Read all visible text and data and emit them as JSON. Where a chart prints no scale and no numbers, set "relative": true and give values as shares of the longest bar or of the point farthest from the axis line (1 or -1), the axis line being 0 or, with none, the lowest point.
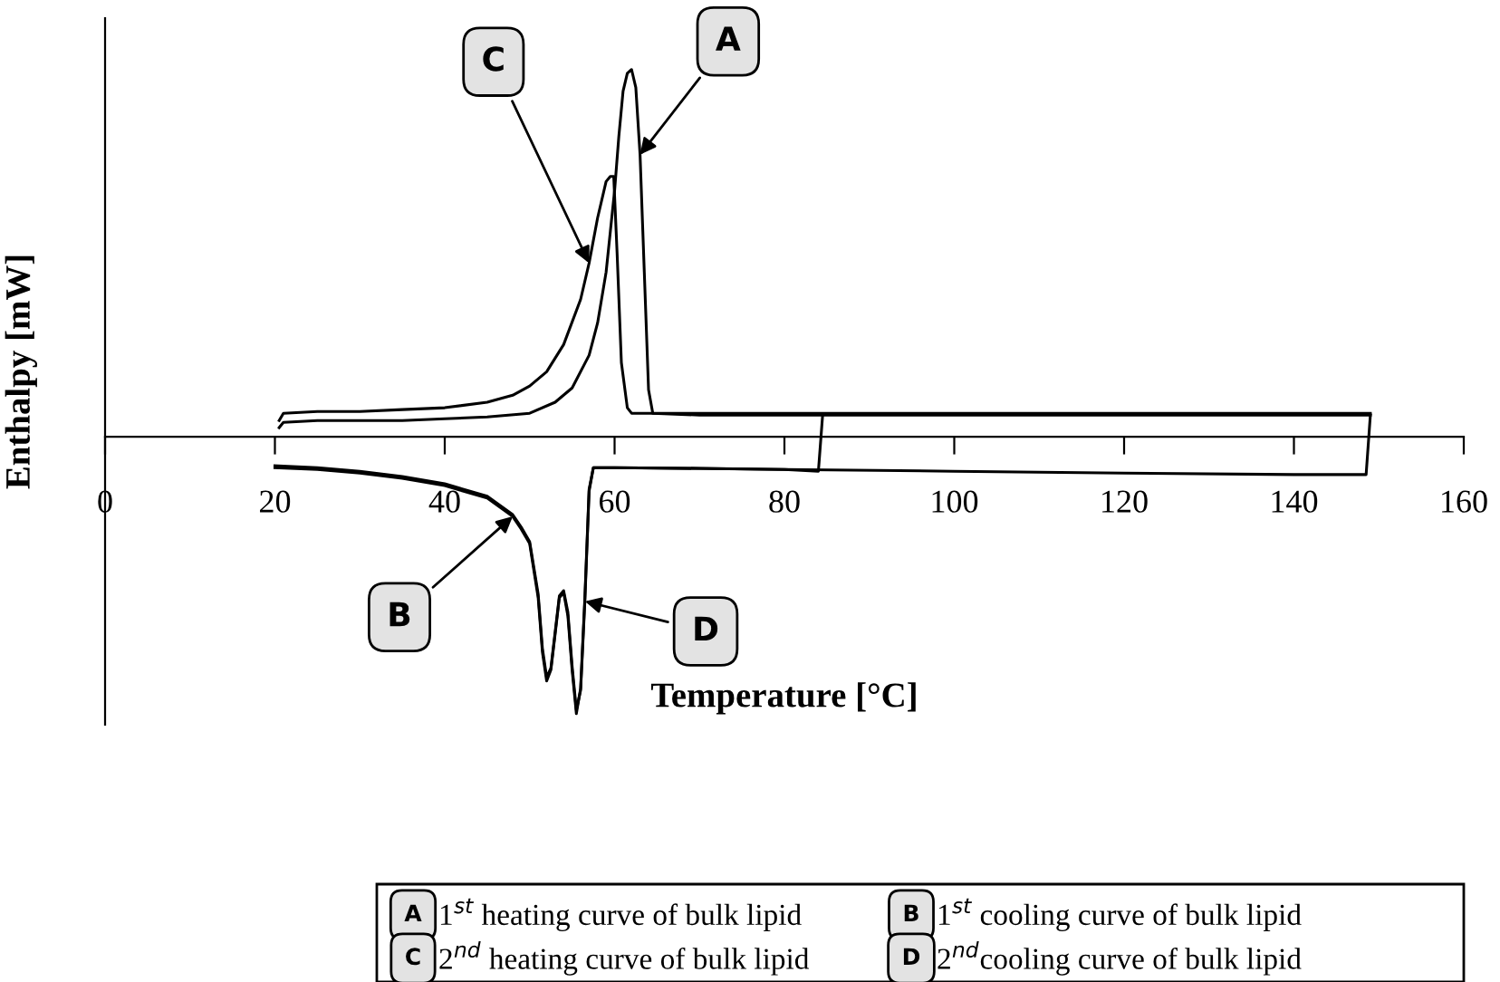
{
  "chart_data": {
    "type": "line",
    "relative": true,
    "xlabel": "Temperature [°C]",
    "ylabel": "Enthalpy [mW]",
    "xlim": [
      0,
      160
    ],
    "xticks": [
      0,
      20,
      40,
      60,
      80,
      100,
      120,
      140,
      160
    ],
    "grid": false,
    "legend": "bottom",
    "marker": "none",
    "line_style": "solid",
    "series": [
      {
        "name": "1$^{st}$ heating curve of bulk lipid",
        "color": "#000000",
        "x": [
          20.5,
          21,
          25,
          30,
          35,
          40,
          45,
          50,
          53,
          55,
          57,
          58,
          59,
          60,
          60.5,
          61,
          61.5,
          62,
          62.5,
          63,
          63.5,
          64,
          64.5,
          70,
          100,
          149
        ],
        "values": [
          0.025,
          0.039,
          0.044,
          0.044,
          0.044,
          0.049,
          0.054,
          0.064,
          0.094,
          0.133,
          0.222,
          0.31,
          0.448,
          0.67,
          0.818,
          0.941,
          0.99,
          1,
          0.951,
          0.768,
          0.448,
          0.128,
          0.064,
          0.059,
          0.059,
          0.059
        ]
      },
      {
        "name": "1$^{st}$ cooling curve of bulk lipid",
        "color": "#000000",
        "x": [
          149,
          148.5,
          140,
          120,
          100,
          80,
          60,
          57.5,
          57,
          56.5,
          56,
          55.5,
          55,
          54.5,
          54,
          53.5,
          53,
          52.5,
          52,
          51.5,
          51,
          50,
          49,
          48,
          45,
          40,
          35,
          30,
          25,
          20
        ],
        "values": [
          0.059,
          -0.103,
          -0.103,
          -0.099,
          -0.094,
          -0.089,
          -0.084,
          -0.084,
          -0.143,
          -0.438,
          -0.685,
          -0.754,
          -0.635,
          -0.488,
          -0.424,
          -0.438,
          -0.537,
          -0.635,
          -0.665,
          -0.586,
          -0.438,
          -0.291,
          -0.251,
          -0.217,
          -0.167,
          -0.133,
          -0.113,
          -0.099,
          -0.089,
          -0.084
        ]
      },
      {
        "name": "2$^{nd}$ heating curve of bulk lipid",
        "color": "#000000",
        "x": [
          20.5,
          21,
          25,
          30,
          35,
          40,
          45,
          48,
          50,
          52,
          54,
          56,
          57,
          58,
          59,
          59.5,
          59.9,
          60.3,
          60.8,
          61.5,
          62,
          70,
          100,
          149
        ],
        "values": [
          0.044,
          0.064,
          0.069,
          0.069,
          0.074,
          0.079,
          0.094,
          0.113,
          0.138,
          0.177,
          0.251,
          0.374,
          0.473,
          0.596,
          0.695,
          0.709,
          0.709,
          0.498,
          0.202,
          0.079,
          0.064,
          0.064,
          0.064,
          0.064
        ]
      },
      {
        "name": "2$^{nd}$cooling curve of bulk lipid",
        "color": "#000000",
        "x": [
          84.5,
          84,
          80,
          70,
          60,
          57.5,
          57,
          56.5,
          56,
          55.5,
          55,
          54.5,
          54,
          53.5,
          53,
          52.5,
          52,
          51.5,
          51,
          50,
          49,
          48,
          45,
          40,
          35,
          30,
          25,
          20
        ],
        "values": [
          0.059,
          -0.094,
          -0.089,
          -0.086,
          -0.084,
          -0.084,
          -0.148,
          -0.448,
          -0.69,
          -0.744,
          -0.625,
          -0.478,
          -0.419,
          -0.433,
          -0.532,
          -0.63,
          -0.655,
          -0.576,
          -0.428,
          -0.286,
          -0.246,
          -0.212,
          -0.162,
          -0.128,
          -0.108,
          -0.094,
          -0.084,
          -0.079
        ]
      }
    ],
    "annotations": [
      {
        "text": "A",
        "x": 63,
        "y": 0.768
      },
      {
        "text": "B",
        "x": 48,
        "y": -0.217
      },
      {
        "text": "C",
        "x": 57,
        "y": 0.473
      },
      {
        "text": "D",
        "x": 56.5,
        "y": -0.448
      }
    ]
  }
}
